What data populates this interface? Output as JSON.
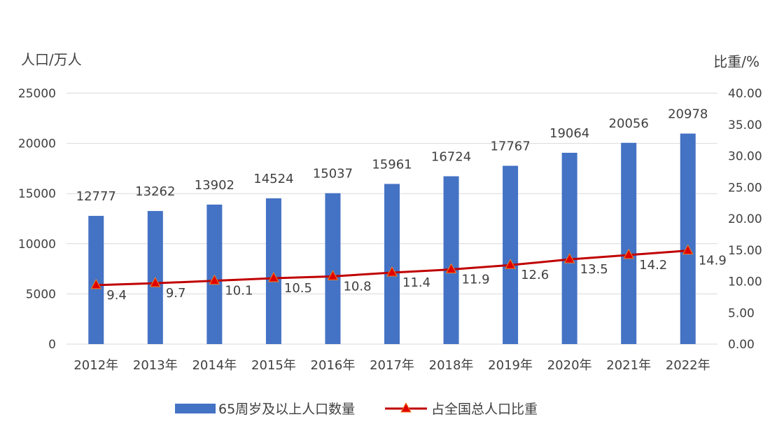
{
  "chart_data": {
    "type": "bar",
    "title": "",
    "ylabel": "人口/万人",
    "y2label": "比重/%",
    "categories": [
      "2012年",
      "2013年",
      "2014年",
      "2015年",
      "2016年",
      "2017年",
      "2018年",
      "2019年",
      "2020年",
      "2021年",
      "2022年"
    ],
    "ylim": [
      0,
      25000
    ],
    "yticks": [
      "0",
      "5000",
      "10000",
      "15000",
      "20000",
      "25000"
    ],
    "y2lim": [
      0,
      40
    ],
    "y2ticks": [
      "0.00",
      "5.00",
      "10.00",
      "15.00",
      "20.00",
      "25.00",
      "30.00",
      "35.00",
      "40.00"
    ],
    "grid": true,
    "legend_position": "bottom",
    "series": [
      {
        "name": "65周岁及以上人口数量",
        "type": "bar",
        "axis": "left",
        "color": "#4472C4",
        "values": [
          12777,
          13262,
          13902,
          14524,
          15037,
          15961,
          16724,
          17767,
          19064,
          20056,
          20978
        ],
        "labels": [
          "12777",
          "13262",
          "13902",
          "14524",
          "15037",
          "15961",
          "16724",
          "17767",
          "19064",
          "20056",
          "20978"
        ]
      },
      {
        "name": "占全国总人口比重",
        "type": "line",
        "axis": "right",
        "color": "#C00000",
        "marker": "triangle",
        "marker_color": "#E00000",
        "values": [
          9.4,
          9.7,
          10.1,
          10.5,
          10.8,
          11.4,
          11.9,
          12.6,
          13.5,
          14.2,
          14.9
        ],
        "labels": [
          "9.4",
          "9.7",
          "10.1",
          "10.5",
          "10.8",
          "11.4",
          "11.9",
          "12.6",
          "13.5",
          "14.2",
          "14.9"
        ]
      }
    ]
  }
}
